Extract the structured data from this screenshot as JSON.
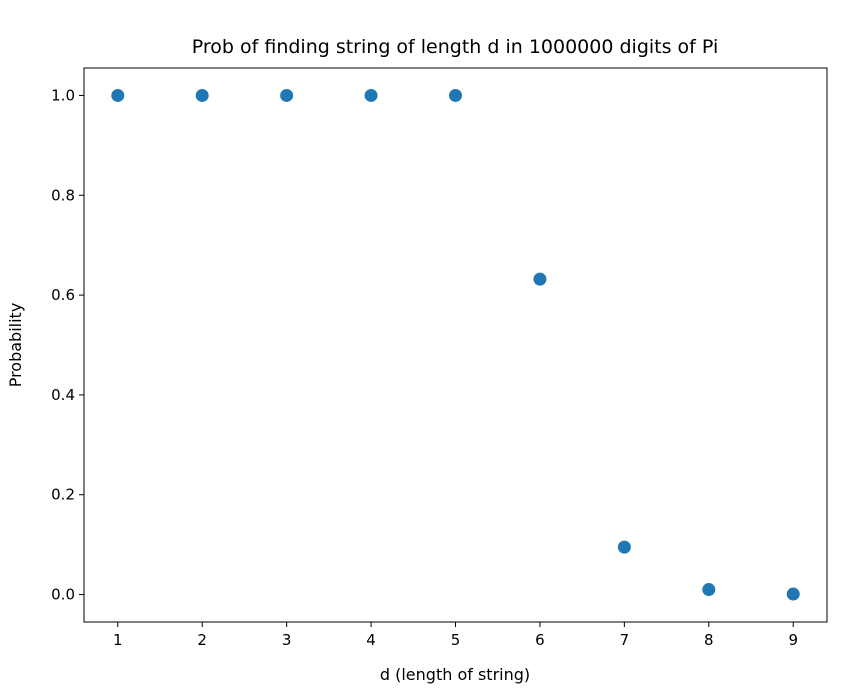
{
  "chart_data": {
    "type": "scatter",
    "title": "Prob of finding string of length d in 1000000 digits of Pi",
    "xlabel": "d (length of string)",
    "ylabel": "Probability",
    "x": [
      1,
      2,
      3,
      4,
      5,
      6,
      7,
      8,
      9
    ],
    "y": [
      1.0,
      1.0,
      1.0,
      1.0,
      1.0,
      0.632,
      0.095,
      0.01,
      0.001
    ],
    "xlim": [
      0.6,
      9.4
    ],
    "ylim": [
      -0.055,
      1.055
    ],
    "xticks": [
      1,
      2,
      3,
      4,
      5,
      6,
      7,
      8,
      9
    ],
    "xtick_labels": [
      "1",
      "2",
      "3",
      "4",
      "5",
      "6",
      "7",
      "8",
      "9"
    ],
    "yticks": [
      0.0,
      0.2,
      0.4,
      0.6,
      0.8,
      1.0
    ],
    "ytick_labels": [
      "0.0",
      "0.2",
      "0.4",
      "0.6",
      "0.8",
      "1.0"
    ],
    "grid": false,
    "marker_color": "#1f77b4"
  }
}
